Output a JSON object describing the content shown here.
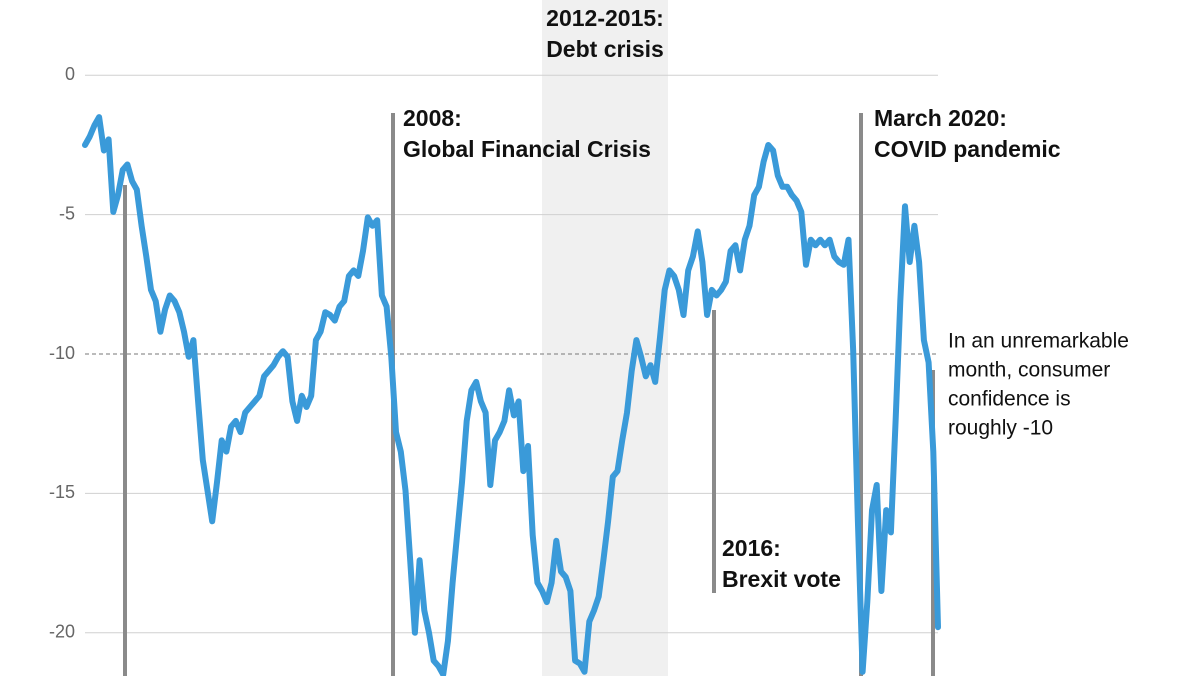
{
  "chart_data": {
    "type": "line",
    "ylim": [
      -21.55,
      2.7
    ],
    "yticks": [
      0,
      -5,
      -10,
      -15,
      -20
    ],
    "grid": true,
    "reference_line": -10,
    "color": "#3a9ad9",
    "values": [
      -2.5,
      -2.2,
      -1.8,
      -1.5,
      -2.7,
      -2.3,
      -4.9,
      -4.3,
      -3.4,
      -3.2,
      -3.8,
      -4.1,
      -5.4,
      -6.5,
      -7.7,
      -8.1,
      -9.2,
      -8.4,
      -7.9,
      -8.1,
      -8.5,
      -9.2,
      -10.1,
      -9.5,
      -11.7,
      -13.8,
      -14.9,
      -16.0,
      -14.6,
      -13.1,
      -13.5,
      -12.6,
      -12.4,
      -12.8,
      -12.1,
      -11.9,
      -11.7,
      -11.5,
      -10.8,
      -10.6,
      -10.4,
      -10.1,
      -9.9,
      -10.1,
      -11.7,
      -12.4,
      -11.5,
      -11.9,
      -11.5,
      -9.5,
      -9.2,
      -8.5,
      -8.6,
      -8.8,
      -8.3,
      -8.1,
      -7.2,
      -7.0,
      -7.2,
      -6.3,
      -5.1,
      -5.4,
      -5.2,
      -7.9,
      -8.3,
      -10.1,
      -12.8,
      -13.5,
      -14.9,
      -17.4,
      -20.0,
      -17.4,
      -19.2,
      -20.0,
      -21.0,
      -21.2,
      -21.5,
      -20.3,
      -18.2,
      -16.4,
      -14.6,
      -12.4,
      -11.3,
      -11.0,
      -11.7,
      -12.1,
      -14.7,
      -13.1,
      -12.8,
      -12.4,
      -11.3,
      -12.2,
      -11.7,
      -14.2,
      -13.3,
      -16.5,
      -18.2,
      -18.5,
      -18.9,
      -18.2,
      -16.7,
      -17.8,
      -18.0,
      -18.5,
      -21.0,
      -21.1,
      -21.4,
      -19.6,
      -19.2,
      -18.7,
      -17.4,
      -16.0,
      -14.4,
      -14.2,
      -13.1,
      -12.1,
      -10.6,
      -9.5,
      -10.1,
      -10.8,
      -10.4,
      -11.0,
      -9.4,
      -7.7,
      -7.0,
      -7.2,
      -7.7,
      -8.6,
      -7.0,
      -6.5,
      -5.6,
      -6.7,
      -8.6,
      -7.7,
      -7.9,
      -7.7,
      -7.4,
      -6.3,
      -6.1,
      -7.0,
      -5.9,
      -5.4,
      -4.3,
      -4.0,
      -3.1,
      -2.5,
      -2.7,
      -3.6,
      -4.0,
      -4.0,
      -4.3,
      -4.5,
      -4.9,
      -6.8,
      -5.9,
      -6.1,
      -5.9,
      -6.1,
      -5.9,
      -6.5,
      -6.7,
      -6.8,
      -5.9,
      -9.9,
      -16.0,
      -21.4,
      -18.9,
      -15.6,
      -14.7,
      -18.5,
      -15.6,
      -16.4,
      -12.4,
      -8.1,
      -4.7,
      -6.7,
      -5.4,
      -6.7,
      -9.5,
      -10.3,
      -13.5,
      -19.8
    ],
    "annotations": [
      {
        "lines": [
          "2012-2015:",
          "Debt crisis"
        ]
      },
      {
        "lines": [
          "2008:",
          "Global Financial Crisis"
        ]
      },
      {
        "lines": [
          "March 2020:",
          "COVID pandemic"
        ]
      },
      {
        "lines": [
          "2016:",
          "Brexit vote"
        ]
      },
      {
        "lines": [
          "In an unremarkable",
          "month, consumer",
          "confidence is",
          "roughly -10"
        ]
      }
    ]
  }
}
